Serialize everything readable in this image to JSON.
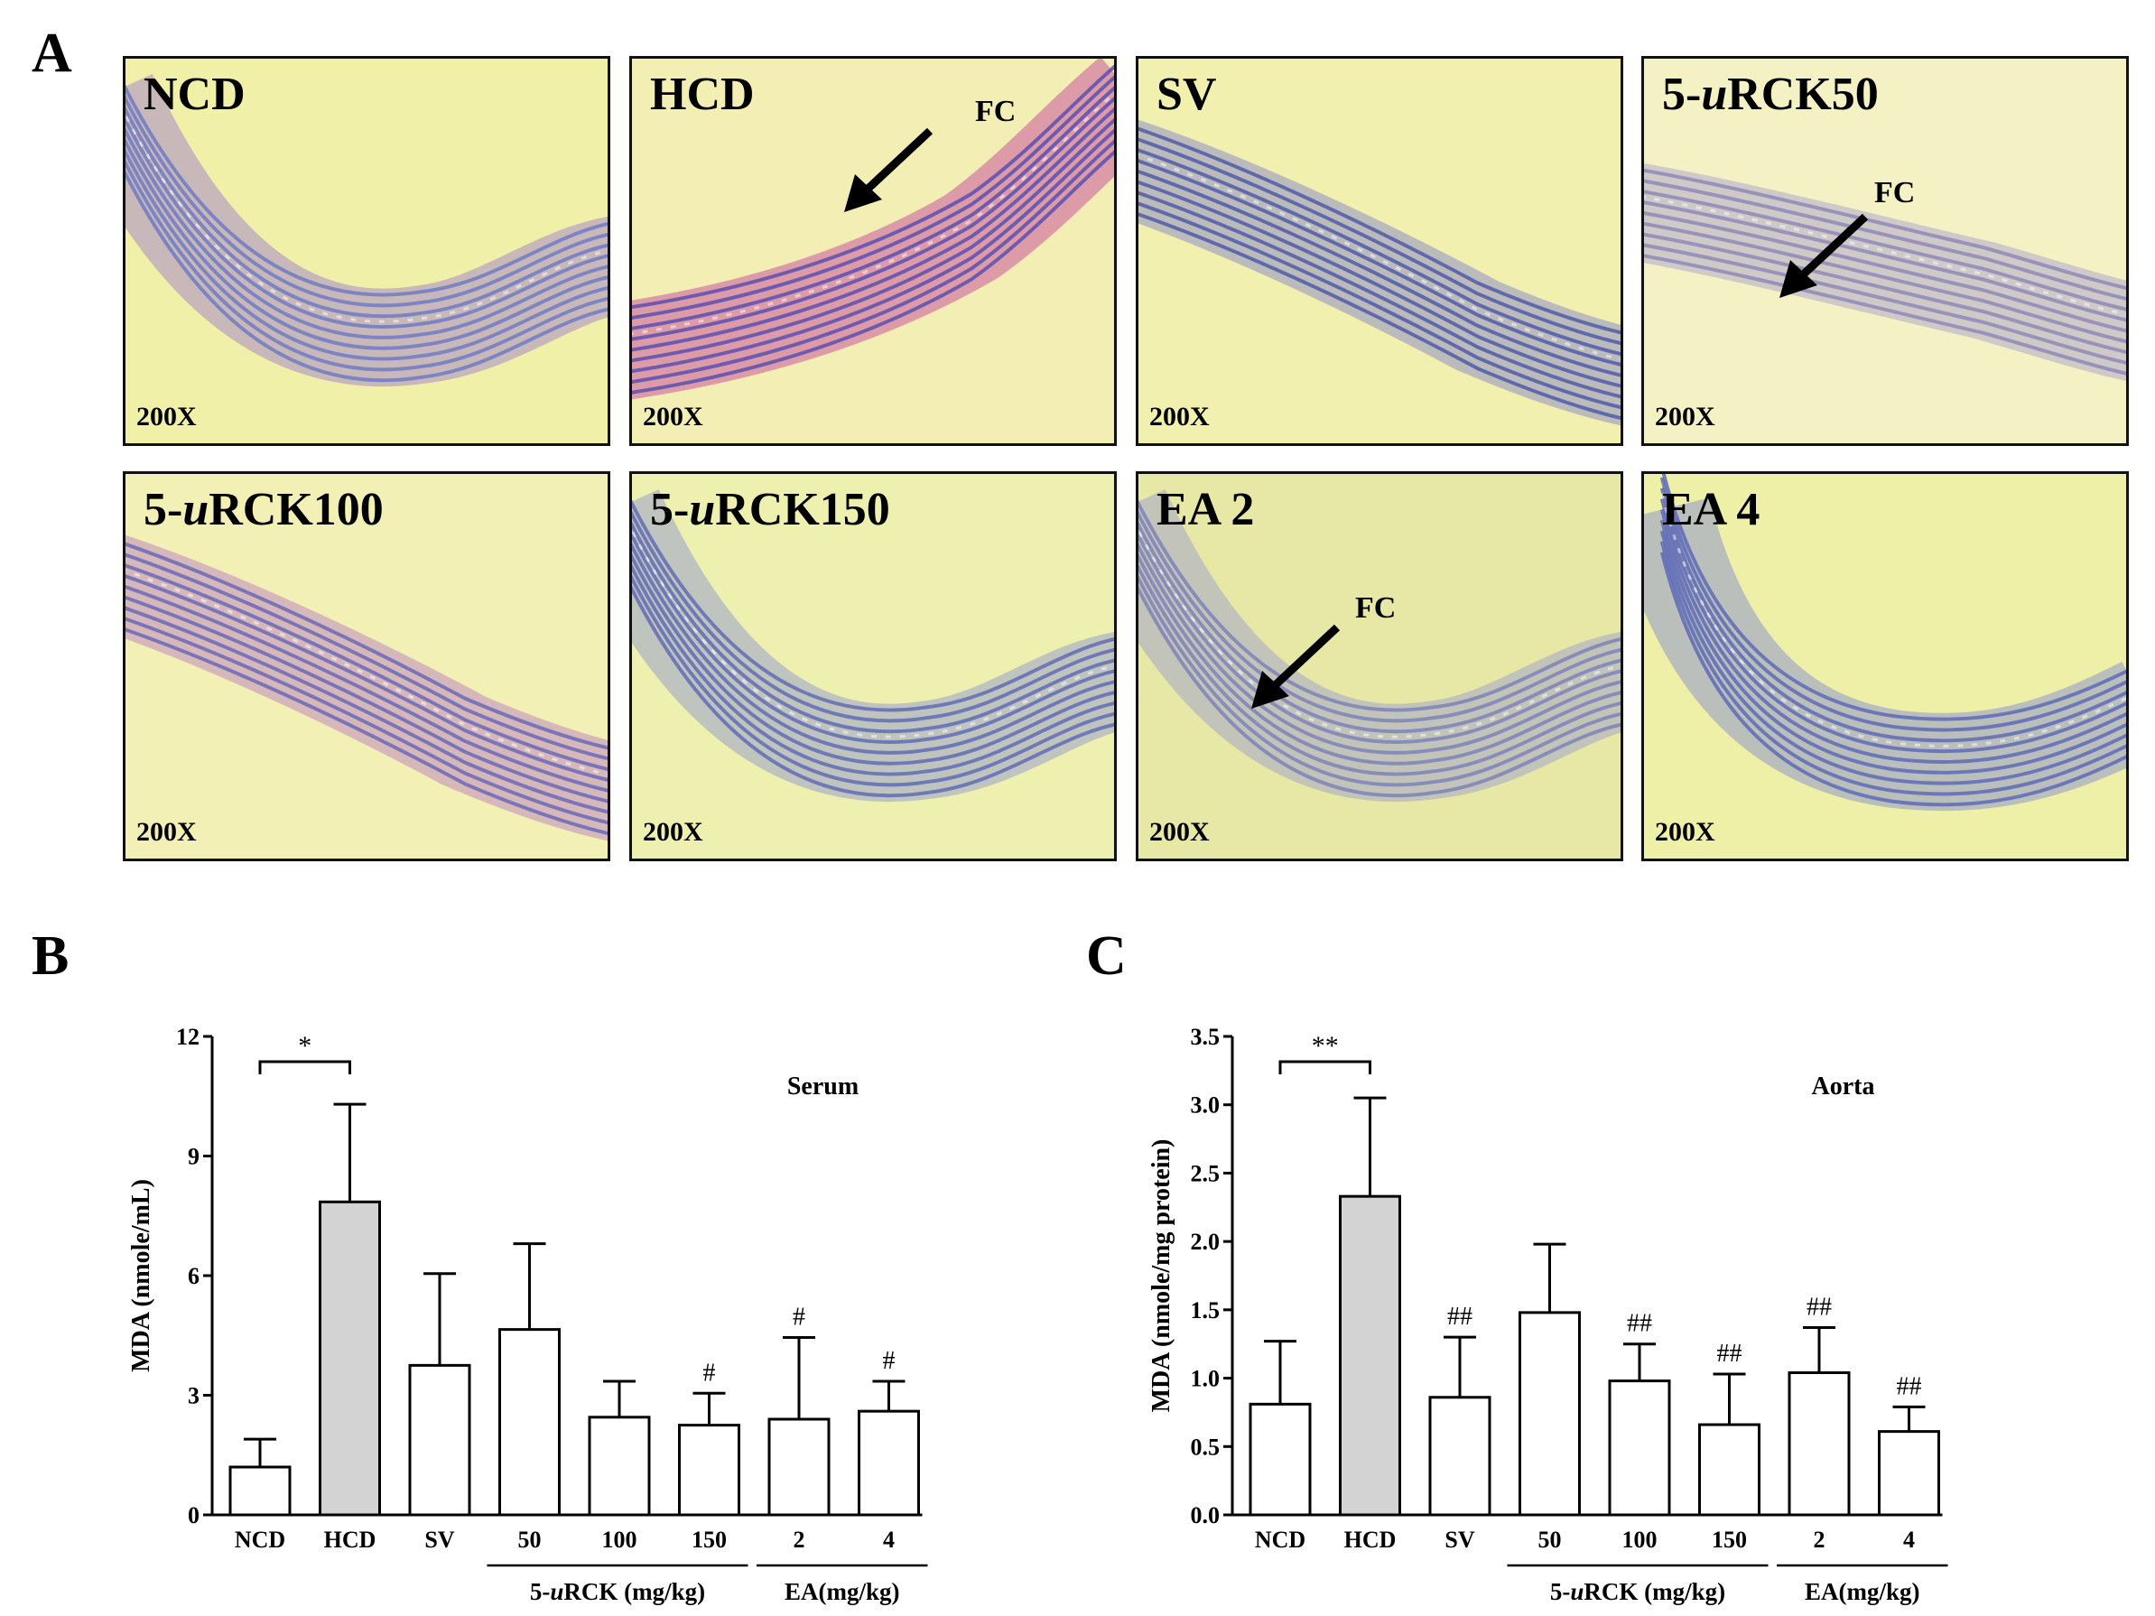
{
  "panel_letters": {
    "a": "A",
    "b": "B",
    "c": "C"
  },
  "micrographs": [
    {
      "label": "NCD",
      "magnification": "200X",
      "annotation": "",
      "tone": "#f0f0a8",
      "band": "#6f7ac2",
      "stain": "#a88ac8",
      "curve": "u"
    },
    {
      "label": "HCD",
      "magnification": "200X",
      "annotation": "FC",
      "tone": "#f3efb4",
      "band": "#5a4fb0",
      "stain": "#c9559c",
      "curve": "rise"
    },
    {
      "label": "SV",
      "magnification": "200X",
      "annotation": "",
      "tone": "#f1f0ae",
      "band": "#4f5ba8",
      "stain": "#8f8fc8",
      "curve": "fall"
    },
    {
      "label": "5-uRCK50",
      "magnification": "200X",
      "annotation": "FC",
      "tone": "#f4f1c4",
      "band": "#8e8ab8",
      "stain": "#b0a8cc",
      "curve": "flat"
    },
    {
      "label": "5-uRCK100",
      "magnification": "200X",
      "annotation": "",
      "tone": "#f2f0b4",
      "band": "#6a69b8",
      "stain": "#c08ac0",
      "curve": "fall"
    },
    {
      "label": "5-uRCK150",
      "magnification": "200X",
      "annotation": "",
      "tone": "#eef0b0",
      "band": "#5f6cb4",
      "stain": "#9aa0cc",
      "curve": "u"
    },
    {
      "label": "EA 2",
      "magnification": "200X",
      "annotation": "FC",
      "tone": "#e8e8a6",
      "band": "#7e82b8",
      "stain": "#a4a6c8",
      "curve": "u"
    },
    {
      "label": "EA 4",
      "magnification": "200X",
      "annotation": "",
      "tone": "#eef0a8",
      "band": "#5e6ab6",
      "stain": "#9298cc",
      "curve": "curl"
    }
  ],
  "chart_data": [
    {
      "type": "bar",
      "title": "Serum",
      "ylabel": "MDA (nmole/mL)",
      "ylim": [
        0,
        12
      ],
      "yticks": [
        "0",
        "3",
        "6",
        "9",
        "12"
      ],
      "categories": [
        "NCD",
        "HCD",
        "SV",
        "50",
        "100",
        "150",
        "2",
        "4"
      ],
      "values": [
        1.2,
        7.85,
        3.75,
        4.65,
        2.45,
        2.25,
        2.4,
        2.6
      ],
      "errors": [
        0.7,
        2.45,
        2.3,
        2.15,
        0.9,
        0.8,
        2.05,
        0.75
      ],
      "fills": [
        "#ffffff",
        "#d3d3d3",
        "#ffffff",
        "#ffffff",
        "#ffffff",
        "#ffffff",
        "#ffffff",
        "#ffffff"
      ],
      "markers": [
        "",
        "",
        "",
        "",
        "",
        "#",
        "#",
        "#"
      ],
      "group_labels": [
        {
          "text": "5-uRCK (mg/kg)",
          "from": 3,
          "to": 5
        },
        {
          "text": "EA(mg/kg)",
          "from": 6,
          "to": 7
        }
      ],
      "bracket": {
        "from": 0,
        "to": 1,
        "label": "*"
      }
    },
    {
      "type": "bar",
      "title": "Aorta",
      "ylabel": "MDA (nmole/mg protein)",
      "ylim": [
        0,
        3.5
      ],
      "yticks": [
        "0.0",
        "0.5",
        "1.0",
        "1.5",
        "2.0",
        "2.5",
        "3.0",
        "3.5"
      ],
      "categories": [
        "NCD",
        "HCD",
        "SV",
        "50",
        "100",
        "150",
        "2",
        "4"
      ],
      "values": [
        0.81,
        2.33,
        0.86,
        1.48,
        0.98,
        0.66,
        1.04,
        0.61
      ],
      "errors": [
        0.46,
        0.72,
        0.44,
        0.5,
        0.27,
        0.37,
        0.33,
        0.18
      ],
      "fills": [
        "#ffffff",
        "#d3d3d3",
        "#ffffff",
        "#ffffff",
        "#ffffff",
        "#ffffff",
        "#ffffff",
        "#ffffff"
      ],
      "markers": [
        "",
        "",
        "##",
        "",
        "##",
        "##",
        "##",
        "##"
      ],
      "group_labels": [
        {
          "text": "5-uRCK (mg/kg)",
          "from": 3,
          "to": 5
        },
        {
          "text": "EA(mg/kg)",
          "from": 6,
          "to": 7
        }
      ],
      "bracket": {
        "from": 0,
        "to": 1,
        "label": "**"
      }
    }
  ]
}
